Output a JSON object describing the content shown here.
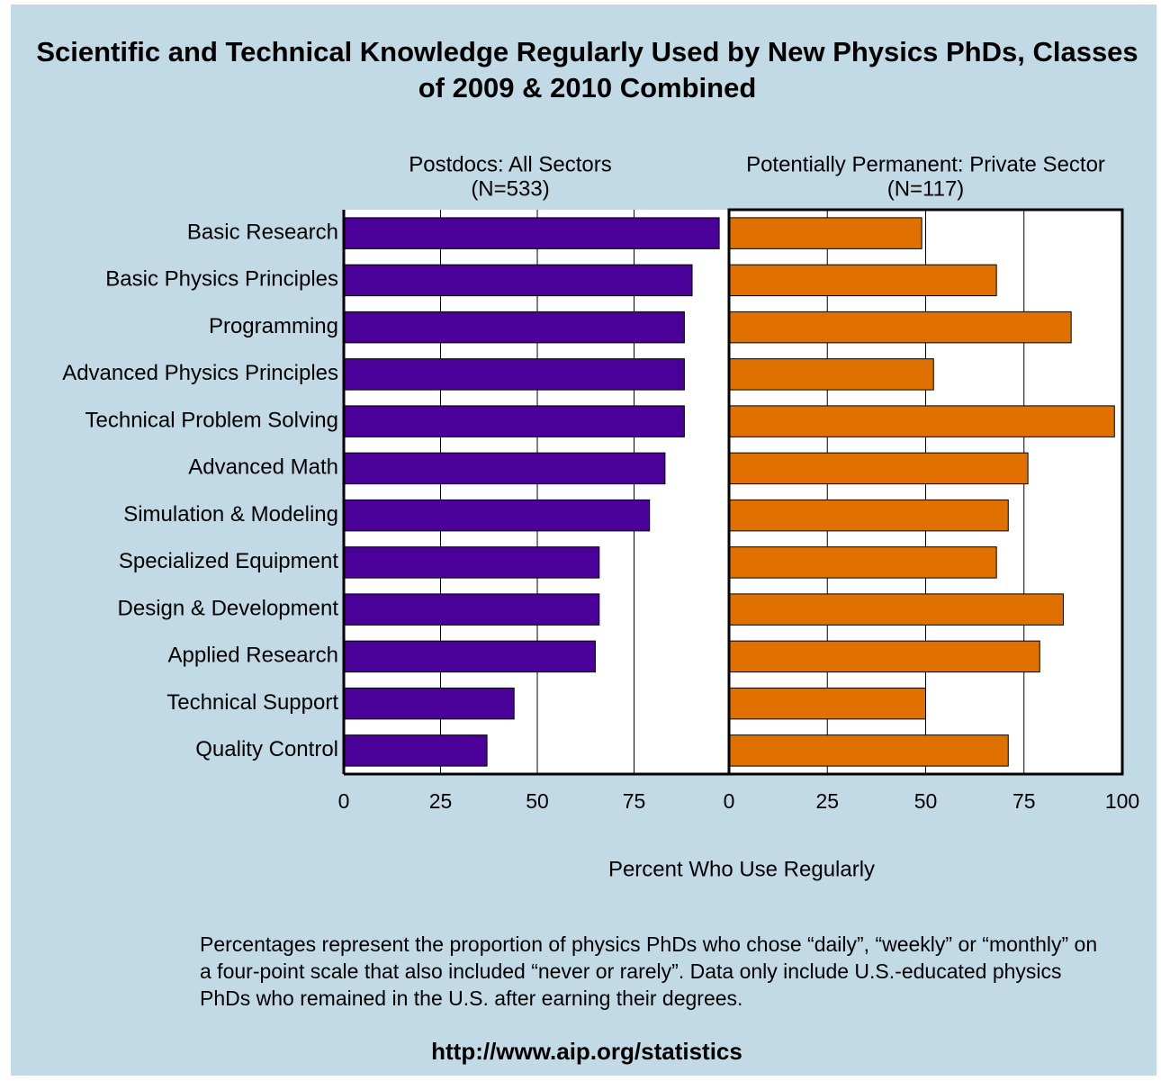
{
  "chart_data": {
    "type": "bar",
    "orientation": "horizontal",
    "title": "Scientific and Technical Knowledge Regularly Used by New Physics PhDs, Classes of 2009 & 2010 Combined",
    "categories": [
      "Basic Research",
      "Basic Physics Principles",
      "Programming",
      "Advanced Physics Principles",
      "Technical Problem Solving",
      "Advanced Math",
      "Simulation & Modeling",
      "Specialized Equipment",
      "Design & Development",
      "Applied Research",
      "Technical Support",
      "Quality Control"
    ],
    "series": [
      {
        "name": "Postdocs: All Sectors",
        "sample": "(N=533)",
        "color": "#4b0099",
        "values": [
          97,
          90,
          88,
          88,
          88,
          83,
          79,
          66,
          66,
          65,
          44,
          37
        ],
        "xlim": [
          0,
          100
        ],
        "xticks": [
          0,
          25,
          50,
          75
        ]
      },
      {
        "name": "Potentially Permanent: Private Sector",
        "sample": "(N=117)",
        "color": "#e07000",
        "values": [
          49,
          68,
          87,
          52,
          98,
          76,
          71,
          68,
          85,
          79,
          50,
          71
        ],
        "xlim": [
          0,
          100
        ],
        "xticks": [
          0,
          25,
          50,
          75,
          100
        ]
      }
    ],
    "x_label": "Percent Who Use Regularly",
    "grid": true,
    "note": "Percentages represent the proportion of physics PhDs who chose “daily”, “weekly” or “monthly” on a four-point scale that also included “never or rarely”.  Data only include U.S.-educated physics PhDs who remained in the U.S. after earning their degrees.",
    "source": "http://www.aip.org/statistics"
  }
}
